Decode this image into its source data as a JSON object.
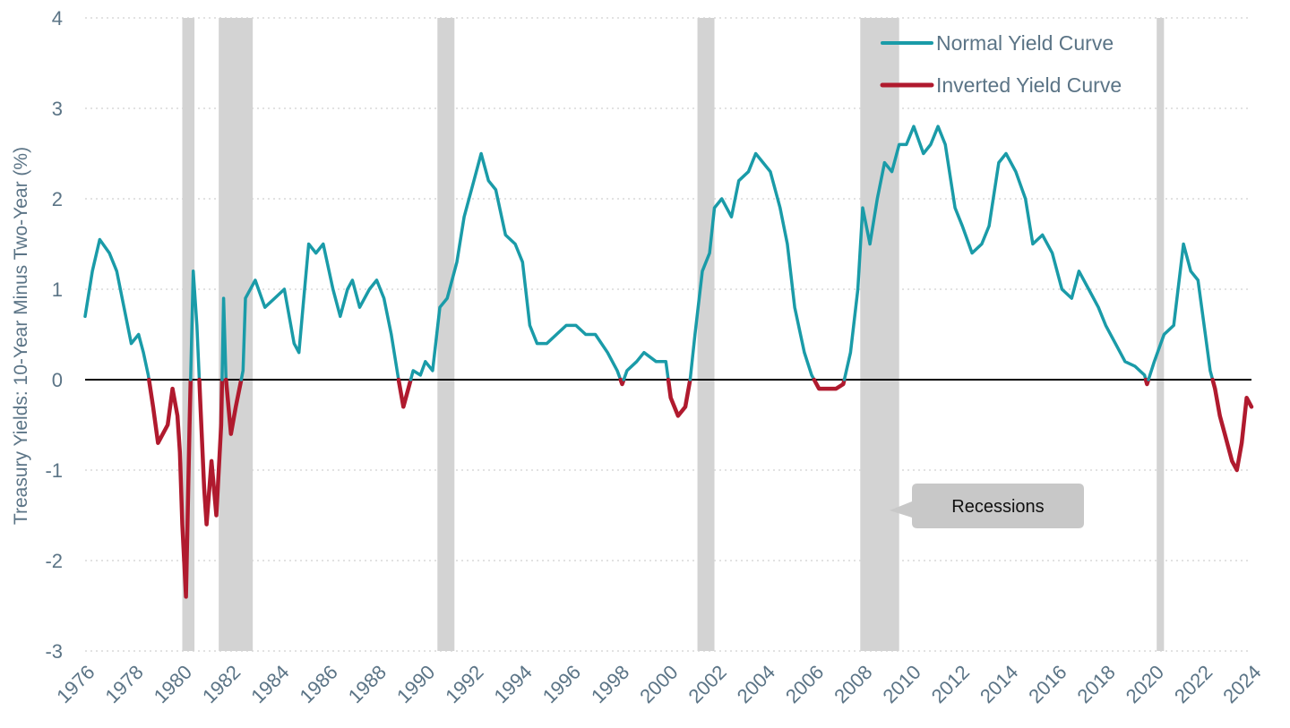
{
  "chart_data": {
    "type": "line",
    "title": "",
    "ylabel": "Treasury Yields: 10-Year Minus Two-Year (%)",
    "xlabel": "",
    "xlim": [
      1976,
      2024
    ],
    "ylim": [
      -3,
      4
    ],
    "yticks": [
      4,
      3,
      2,
      1,
      0,
      -1,
      -2,
      -3
    ],
    "xticks": [
      1976,
      1978,
      1980,
      1982,
      1984,
      1986,
      1988,
      1990,
      1992,
      1994,
      1996,
      1998,
      2000,
      2002,
      2004,
      2006,
      2008,
      2010,
      2012,
      2014,
      2016,
      2018,
      2020,
      2022,
      2024
    ],
    "grid": "horizontal dotted",
    "legend_placement": "top-right",
    "legend": [
      {
        "label": "Normal Yield Curve",
        "color": "#1a9ba8"
      },
      {
        "label": "Inverted Yield Curve",
        "color": "#b01a2e"
      }
    ],
    "colors": {
      "normal": "#1a9ba8",
      "inverted": "#b01a2e",
      "recession": "#d3d3d3",
      "zero_line": "#000000"
    },
    "annotation": "Recessions",
    "recessions": [
      [
        1980.0,
        1980.5
      ],
      [
        1981.5,
        1982.9
      ],
      [
        1990.5,
        1991.2
      ],
      [
        2001.2,
        2001.9
      ],
      [
        2007.9,
        2009.5
      ],
      [
        2020.1,
        2020.4
      ]
    ],
    "series": [
      {
        "points": [
          [
            1976.0,
            0.7
          ],
          [
            1976.3,
            1.2
          ],
          [
            1976.6,
            1.55
          ],
          [
            1977.0,
            1.4
          ],
          [
            1977.3,
            1.2
          ],
          [
            1977.6,
            0.8
          ],
          [
            1977.9,
            0.4
          ],
          [
            1978.2,
            0.5
          ],
          [
            1978.4,
            0.3
          ],
          [
            1978.6,
            0.05
          ],
          [
            1978.8,
            -0.3
          ],
          [
            1979.0,
            -0.7
          ],
          [
            1979.2,
            -0.6
          ],
          [
            1979.4,
            -0.5
          ],
          [
            1979.6,
            -0.1
          ],
          [
            1979.8,
            -0.4
          ],
          [
            1979.9,
            -0.8
          ],
          [
            1980.0,
            -1.6
          ],
          [
            1980.15,
            -2.4
          ],
          [
            1980.3,
            -0.5
          ],
          [
            1980.45,
            1.2
          ],
          [
            1980.6,
            0.6
          ],
          [
            1980.75,
            -0.3
          ],
          [
            1980.9,
            -1.2
          ],
          [
            1981.0,
            -1.6
          ],
          [
            1981.2,
            -0.9
          ],
          [
            1981.4,
            -1.5
          ],
          [
            1981.6,
            -0.5
          ],
          [
            1981.7,
            0.9
          ],
          [
            1981.8,
            0.0
          ],
          [
            1982.0,
            -0.6
          ],
          [
            1982.2,
            -0.3
          ],
          [
            1982.5,
            0.1
          ],
          [
            1982.6,
            0.9
          ],
          [
            1983.0,
            1.1
          ],
          [
            1983.4,
            0.8
          ],
          [
            1983.8,
            0.9
          ],
          [
            1984.2,
            1.0
          ],
          [
            1984.6,
            0.4
          ],
          [
            1984.8,
            0.3
          ],
          [
            1985.0,
            0.9
          ],
          [
            1985.2,
            1.5
          ],
          [
            1985.5,
            1.4
          ],
          [
            1985.8,
            1.5
          ],
          [
            1986.2,
            1.0
          ],
          [
            1986.5,
            0.7
          ],
          [
            1986.8,
            1.0
          ],
          [
            1987.0,
            1.1
          ],
          [
            1987.3,
            0.8
          ],
          [
            1987.7,
            1.0
          ],
          [
            1988.0,
            1.1
          ],
          [
            1988.3,
            0.9
          ],
          [
            1988.6,
            0.5
          ],
          [
            1988.9,
            0.0
          ],
          [
            1989.1,
            -0.3
          ],
          [
            1989.3,
            -0.1
          ],
          [
            1989.5,
            0.1
          ],
          [
            1989.8,
            0.05
          ],
          [
            1990.0,
            0.2
          ],
          [
            1990.3,
            0.1
          ],
          [
            1990.6,
            0.8
          ],
          [
            1990.9,
            0.9
          ],
          [
            1991.3,
            1.3
          ],
          [
            1991.6,
            1.8
          ],
          [
            1992.0,
            2.2
          ],
          [
            1992.3,
            2.5
          ],
          [
            1992.6,
            2.2
          ],
          [
            1992.9,
            2.1
          ],
          [
            1993.3,
            1.6
          ],
          [
            1993.7,
            1.5
          ],
          [
            1994.0,
            1.3
          ],
          [
            1994.3,
            0.6
          ],
          [
            1994.6,
            0.4
          ],
          [
            1995.0,
            0.4
          ],
          [
            1995.4,
            0.5
          ],
          [
            1995.8,
            0.6
          ],
          [
            1996.2,
            0.6
          ],
          [
            1996.6,
            0.5
          ],
          [
            1997.0,
            0.5
          ],
          [
            1997.5,
            0.3
          ],
          [
            1997.9,
            0.1
          ],
          [
            1998.1,
            -0.05
          ],
          [
            1998.3,
            0.1
          ],
          [
            1998.7,
            0.2
          ],
          [
            1999.0,
            0.3
          ],
          [
            1999.5,
            0.2
          ],
          [
            1999.9,
            0.2
          ],
          [
            2000.1,
            -0.2
          ],
          [
            2000.4,
            -0.4
          ],
          [
            2000.7,
            -0.3
          ],
          [
            2000.9,
            0.0
          ],
          [
            2001.1,
            0.5
          ],
          [
            2001.4,
            1.2
          ],
          [
            2001.7,
            1.4
          ],
          [
            2001.9,
            1.9
          ],
          [
            2002.2,
            2.0
          ],
          [
            2002.6,
            1.8
          ],
          [
            2002.9,
            2.2
          ],
          [
            2003.3,
            2.3
          ],
          [
            2003.6,
            2.5
          ],
          [
            2003.9,
            2.4
          ],
          [
            2004.2,
            2.3
          ],
          [
            2004.6,
            1.9
          ],
          [
            2004.9,
            1.5
          ],
          [
            2005.2,
            0.8
          ],
          [
            2005.6,
            0.3
          ],
          [
            2005.9,
            0.05
          ],
          [
            2006.2,
            -0.1
          ],
          [
            2006.6,
            -0.1
          ],
          [
            2006.9,
            -0.1
          ],
          [
            2007.2,
            -0.05
          ],
          [
            2007.5,
            0.3
          ],
          [
            2007.8,
            1.0
          ],
          [
            2008.0,
            1.9
          ],
          [
            2008.3,
            1.5
          ],
          [
            2008.6,
            2.0
          ],
          [
            2008.9,
            2.4
          ],
          [
            2009.2,
            2.3
          ],
          [
            2009.5,
            2.6
          ],
          [
            2009.8,
            2.6
          ],
          [
            2010.1,
            2.8
          ],
          [
            2010.5,
            2.5
          ],
          [
            2010.8,
            2.6
          ],
          [
            2011.1,
            2.8
          ],
          [
            2011.4,
            2.6
          ],
          [
            2011.8,
            1.9
          ],
          [
            2012.1,
            1.7
          ],
          [
            2012.5,
            1.4
          ],
          [
            2012.9,
            1.5
          ],
          [
            2013.2,
            1.7
          ],
          [
            2013.6,
            2.4
          ],
          [
            2013.9,
            2.5
          ],
          [
            2014.3,
            2.3
          ],
          [
            2014.7,
            2.0
          ],
          [
            2015.0,
            1.5
          ],
          [
            2015.4,
            1.6
          ],
          [
            2015.8,
            1.4
          ],
          [
            2016.2,
            1.0
          ],
          [
            2016.6,
            0.9
          ],
          [
            2016.9,
            1.2
          ],
          [
            2017.3,
            1.0
          ],
          [
            2017.7,
            0.8
          ],
          [
            2018.0,
            0.6
          ],
          [
            2018.4,
            0.4
          ],
          [
            2018.8,
            0.2
          ],
          [
            2019.2,
            0.15
          ],
          [
            2019.6,
            0.05
          ],
          [
            2019.7,
            -0.05
          ],
          [
            2020.0,
            0.2
          ],
          [
            2020.4,
            0.5
          ],
          [
            2020.8,
            0.6
          ],
          [
            2021.2,
            1.5
          ],
          [
            2021.5,
            1.2
          ],
          [
            2021.8,
            1.1
          ],
          [
            2022.1,
            0.5
          ],
          [
            2022.3,
            0.1
          ],
          [
            2022.5,
            -0.1
          ],
          [
            2022.7,
            -0.4
          ],
          [
            2022.9,
            -0.6
          ],
          [
            2023.2,
            -0.9
          ],
          [
            2023.4,
            -1.0
          ],
          [
            2023.6,
            -0.7
          ],
          [
            2023.8,
            -0.2
          ],
          [
            2024.0,
            -0.3
          ]
        ]
      }
    ]
  }
}
